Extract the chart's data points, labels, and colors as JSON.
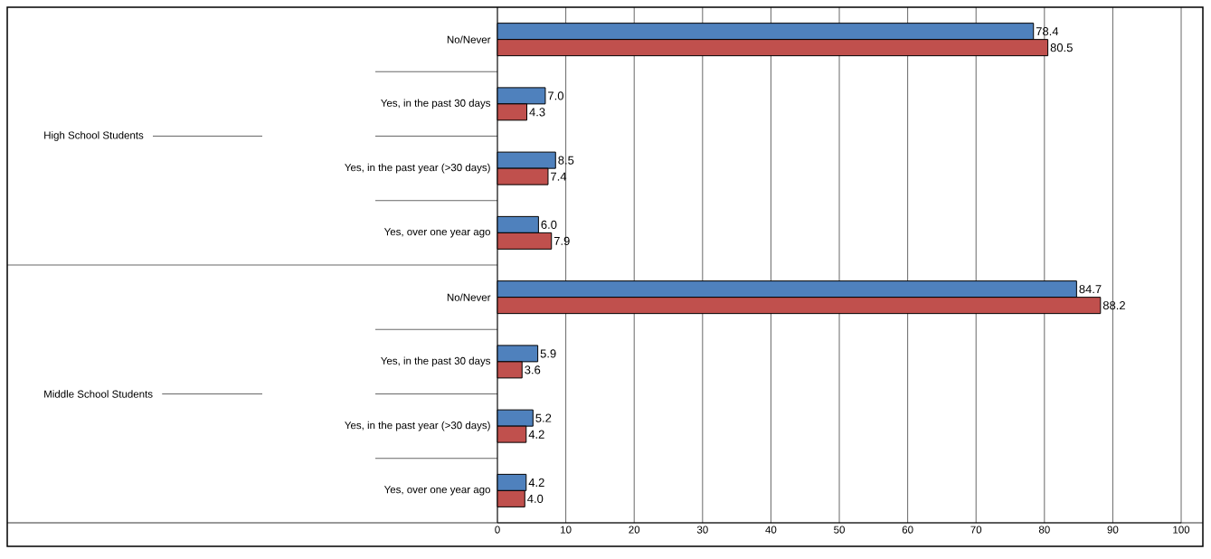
{
  "chart_data": {
    "type": "bar",
    "orientation": "horizontal",
    "categories": [
      "No/Never",
      "Yes, in the past 30 days",
      "Yes, in the past year (>30 days)",
      "Yes, over one year ago",
      "No/Never",
      "Yes, in the past 30 days",
      "Yes, in the past year (>30 days)",
      "Yes, over one year ago"
    ],
    "annotations": [
      "High School Students",
      "Middle School Students"
    ],
    "series": [
      {
        "color": "#4f81bd",
        "values": [
          78.4,
          7.0,
          8.5,
          6.0,
          84.7,
          5.9,
          5.2,
          4.2
        ],
        "value_labels": [
          "78.4",
          "7.0",
          "8.5",
          "6.0",
          "84.7",
          "5.9",
          "5.2",
          "4.2"
        ]
      },
      {
        "color": "#c0504d",
        "values": [
          80.5,
          4.3,
          7.4,
          7.9,
          88.2,
          3.6,
          4.2,
          4.0
        ],
        "value_labels": [
          "80.5",
          "4.3",
          "7.4",
          "7.9",
          "88.2",
          "3.6",
          "4.2",
          "4.0"
        ]
      }
    ],
    "xlim": [
      0,
      100
    ],
    "xticks": [
      0,
      10,
      20,
      30,
      40,
      50,
      60,
      70,
      80,
      90,
      100
    ],
    "grid": "x"
  }
}
